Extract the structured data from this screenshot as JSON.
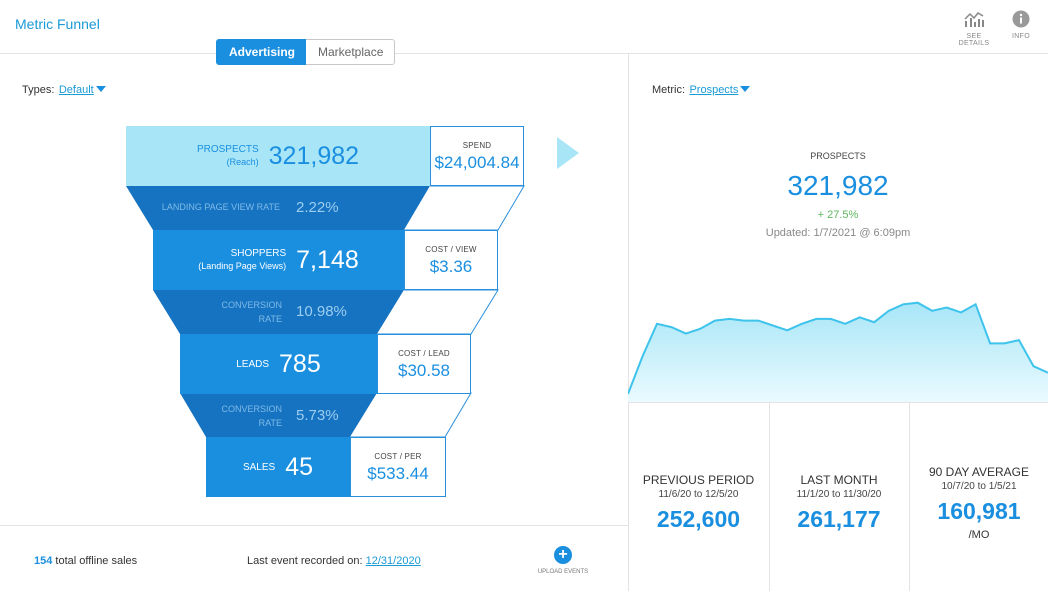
{
  "header": {
    "title": "Metric Funnel",
    "see_details_label": "SEE DETAILS",
    "info_label": "INFO"
  },
  "toggle": {
    "active": "Advertising",
    "inactive": "Marketplace"
  },
  "types": {
    "label": "Types:",
    "value": "Default"
  },
  "metric": {
    "label": "Metric:",
    "value": "Prospects"
  },
  "funnel": {
    "stages": [
      {
        "label": "PROSPECTS",
        "sub": "(Reach)",
        "value": "321,982",
        "cost_label": "SPEND",
        "cost_value": "$24,004.84"
      },
      {
        "label": "SHOPPERS",
        "sub": "(Landing Page Views)",
        "value": "7,148",
        "cost_label": "COST / VIEW",
        "cost_value": "$3.36"
      },
      {
        "label": "LEADS",
        "sub": "",
        "value": "785",
        "cost_label": "COST / LEAD",
        "cost_value": "$30.58"
      },
      {
        "label": "SALES",
        "sub": "",
        "value": "45",
        "cost_label": "COST / PER",
        "cost_value": "$533.44"
      }
    ],
    "rates": [
      {
        "label_1": "LANDING PAGE VIEW RATE",
        "label_2": "",
        "value": "2.22%"
      },
      {
        "label_1": "CONVERSION",
        "label_2": "RATE",
        "value": "10.98%"
      },
      {
        "label_1": "CONVERSION",
        "label_2": "RATE",
        "value": "5.73%"
      }
    ],
    "colors": {
      "bar_top": "#a8e6f7",
      "bar": "#1a8fe0",
      "band": "#1573c2",
      "border": "#2a8fdc"
    }
  },
  "footer": {
    "offline_count": "154",
    "offline_text": "total offline sales",
    "last_event_label": "Last event recorded on:",
    "last_event_date": "12/31/2020",
    "upload_label": "UPLOAD EVENTS"
  },
  "summary": {
    "label": "PROSPECTS",
    "value": "321,982",
    "change": "+ 27.5%",
    "updated": "Updated: 1/7/2021 @ 6:09pm"
  },
  "chart_data": {
    "type": "area",
    "title": "",
    "xlabel": "",
    "ylabel": "",
    "values": [
      5,
      28,
      48,
      46,
      42,
      45,
      50,
      51,
      50,
      50,
      47,
      44,
      48,
      51,
      51,
      48,
      52,
      49,
      56,
      60,
      61,
      56,
      58,
      55,
      60,
      36,
      36,
      38,
      22,
      18
    ],
    "ylim": [
      0,
      70
    ],
    "grid": false,
    "color_line": "#3ec3ec",
    "color_fill_top": "#a8e6f7"
  },
  "stats": [
    {
      "label": "PREVIOUS PERIOD",
      "dates": "11/6/20 to 12/5/20",
      "value": "252,600",
      "unit": ""
    },
    {
      "label": "LAST MONTH",
      "dates": "11/1/20 to 11/30/20",
      "value": "261,177",
      "unit": ""
    },
    {
      "label": "90 DAY AVERAGE",
      "dates": "10/7/20 to 1/5/21",
      "value": "160,981",
      "unit": "/MO"
    }
  ]
}
